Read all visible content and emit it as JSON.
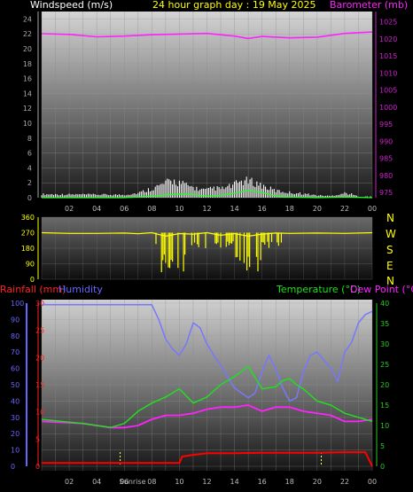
{
  "header": {
    "windspeed": "Windspeed (m/s)",
    "title": "24 hour graph day : 19 May 2025",
    "barometer": "Barometer (mb)"
  },
  "direction_header": {
    "letters": [
      "N",
      "W",
      "S",
      "E",
      "N"
    ]
  },
  "lower_header": {
    "rainfall": "Rainfall (mm)",
    "humidity": "Humidity",
    "temperature": "Temperature (°C)",
    "dewpoint": "Dew Point (°C)"
  },
  "markers": {
    "sunrise": "Sunrise",
    "sunset": ""
  },
  "colors": {
    "wind": "#ffffff",
    "gust": "#ffffff",
    "wind_avg": "#22ff22",
    "barometer": "#ff22ff",
    "direction": "#ffff00",
    "humidity": "#7777ff",
    "temperature": "#22dd22",
    "dewpoint": "#ff22ff",
    "rain": "#ff0000",
    "axis_wind": "#aaaaaa",
    "axis_baro": "#cc22cc",
    "axis_rain": "#ff2222",
    "axis_hum": "#6666ff",
    "axis_temp": "#22cc22"
  },
  "chart_data": [
    {
      "type": "line",
      "name": "wind-barometer",
      "x_labels": [
        "02",
        "04",
        "06",
        "08",
        "10",
        "12",
        "14",
        "16",
        "18",
        "20",
        "22",
        "00"
      ],
      "y_left": {
        "label": "Windspeed (m/s)",
        "ticks": [
          0,
          2,
          4,
          6,
          8,
          10,
          12,
          14,
          16,
          18,
          20,
          22,
          24
        ],
        "range": [
          0,
          25
        ]
      },
      "y_right": {
        "label": "Barometer (mb)",
        "ticks": [
          975,
          980,
          985,
          990,
          995,
          1000,
          1005,
          1010,
          1015,
          1020,
          1025
        ],
        "range": [
          973.5,
          1028
        ]
      },
      "series": [
        {
          "name": "Barometer",
          "x": [
            0,
            2,
            4,
            6,
            8,
            10,
            12,
            14,
            15,
            16,
            18,
            20,
            22,
            24
          ],
          "y": [
            1021.5,
            1021.3,
            1020.6,
            1020.8,
            1021.2,
            1021.4,
            1021.6,
            1020.8,
            1020.1,
            1020.7,
            1020.3,
            1020.5,
            1021.6,
            1022.0
          ]
        },
        {
          "name": "Wind gust",
          "x": [
            0,
            6,
            7,
            7.5,
            8,
            8.5,
            9,
            9.5,
            10,
            10.5,
            11,
            11.5,
            12,
            12.5,
            13,
            13.5,
            14,
            14.5,
            15,
            15.5,
            16,
            16.5,
            17,
            18,
            19,
            20,
            21,
            22,
            22.5,
            23,
            24
          ],
          "y": [
            0.6,
            0.5,
            0.8,
            1.2,
            1.6,
            2.0,
            2.5,
            2.9,
            2.6,
            2.1,
            1.8,
            1.4,
            1.3,
            1.7,
            1.5,
            1.8,
            2.2,
            2.9,
            2.8,
            2.6,
            2.1,
            1.6,
            1.2,
            0.9,
            0.7,
            0.4,
            0.3,
            0.8,
            0.6,
            0.2,
            0.2
          ]
        },
        {
          "name": "Wind average",
          "x": [
            0,
            6,
            8,
            10,
            11,
            12,
            13,
            14,
            15,
            16,
            17,
            18,
            20,
            22,
            24
          ],
          "y": [
            0,
            0,
            0.2,
            0.5,
            0.4,
            0.2,
            0.3,
            0.6,
            1.0,
            0.7,
            0.2,
            0.1,
            0,
            0.1,
            0
          ]
        }
      ]
    },
    {
      "type": "scatter",
      "name": "wind-direction",
      "y_range": [
        0,
        360
      ],
      "y_ticks": [
        0,
        90,
        180,
        270,
        360
      ],
      "series": [
        {
          "name": "Direction",
          "x": [
            0,
            2,
            4,
            6,
            7,
            8,
            9,
            10,
            11,
            12,
            13,
            14,
            15,
            16,
            17,
            18,
            20,
            22,
            24
          ],
          "y": [
            270,
            266,
            266,
            268,
            264,
            270,
            250,
            265,
            262,
            270,
            255,
            265,
            250,
            262,
            268,
            266,
            268,
            266,
            270
          ]
        }
      ]
    },
    {
      "type": "line",
      "name": "temperature-humidity-rain",
      "y_left_rain": {
        "label": "Rainfall (mm)",
        "ticks": [
          0,
          5,
          10,
          15,
          20,
          25,
          30
        ],
        "range": [
          0,
          30
        ]
      },
      "y_left_hum": {
        "label": "Humidity",
        "ticks": [
          0,
          10,
          20,
          30,
          40,
          50,
          60,
          70,
          80,
          90,
          100
        ],
        "range": [
          0,
          100
        ]
      },
      "y_right": {
        "label": "Temperature (°C)",
        "ticks": [
          0,
          5,
          10,
          15,
          20,
          25,
          30,
          35,
          40
        ],
        "range": [
          0,
          40
        ]
      },
      "series": [
        {
          "name": "Humidity",
          "x": [
            0,
            6,
            8,
            8.5,
            9,
            9.5,
            10,
            10.5,
            11,
            11.5,
            12,
            12.5,
            13,
            14,
            14.5,
            15,
            15.5,
            16,
            16.5,
            17,
            17.5,
            18,
            18.5,
            19,
            19.5,
            20,
            21,
            21.5,
            22,
            22.5,
            23,
            23.5,
            24
          ],
          "y": [
            99,
            99,
            99,
            90,
            78,
            72,
            68,
            75,
            88,
            85,
            75,
            68,
            62,
            48,
            45,
            42,
            45,
            58,
            68,
            60,
            48,
            40,
            42,
            58,
            68,
            70,
            60,
            52,
            70,
            76,
            88,
            93,
            95
          ]
        },
        {
          "name": "Temperature",
          "x": [
            0,
            3,
            5,
            6,
            7,
            8,
            9,
            10,
            11,
            12,
            13,
            14,
            15,
            16,
            17,
            17.5,
            18,
            18.5,
            19,
            20,
            21,
            22,
            23,
            24
          ],
          "y": [
            11.5,
            10.5,
            9.5,
            10.5,
            13.5,
            15.5,
            17,
            19,
            15.5,
            17,
            20,
            22,
            24.5,
            19,
            19.5,
            21,
            21.5,
            20,
            19,
            16,
            15,
            13,
            12,
            11
          ]
        },
        {
          "name": "Dew Point",
          "x": [
            0,
            3,
            5,
            6,
            7,
            8,
            9,
            10,
            11,
            12,
            13,
            14,
            15,
            16,
            17,
            18,
            19,
            20,
            21,
            22,
            23,
            24
          ],
          "y": [
            11,
            10.5,
            9.5,
            9.5,
            10,
            11.5,
            12.5,
            12.5,
            13,
            14,
            14.5,
            14.5,
            15,
            13.5,
            14.5,
            14.5,
            13.5,
            13,
            12.5,
            11,
            11,
            11.5
          ]
        },
        {
          "name": "Rainfall",
          "x": [
            0,
            10,
            10.2,
            11,
            12,
            13,
            14,
            16,
            18,
            20,
            22,
            23.5,
            24
          ],
          "y": [
            0.6,
            0.6,
            1.8,
            2.1,
            2.4,
            2.4,
            2.4,
            2.5,
            2.5,
            2.5,
            2.6,
            2.6,
            0
          ]
        }
      ],
      "markers": [
        {
          "label": "Sunrise",
          "x": 5.7
        },
        {
          "label": "",
          "x": 20.3
        }
      ]
    }
  ]
}
